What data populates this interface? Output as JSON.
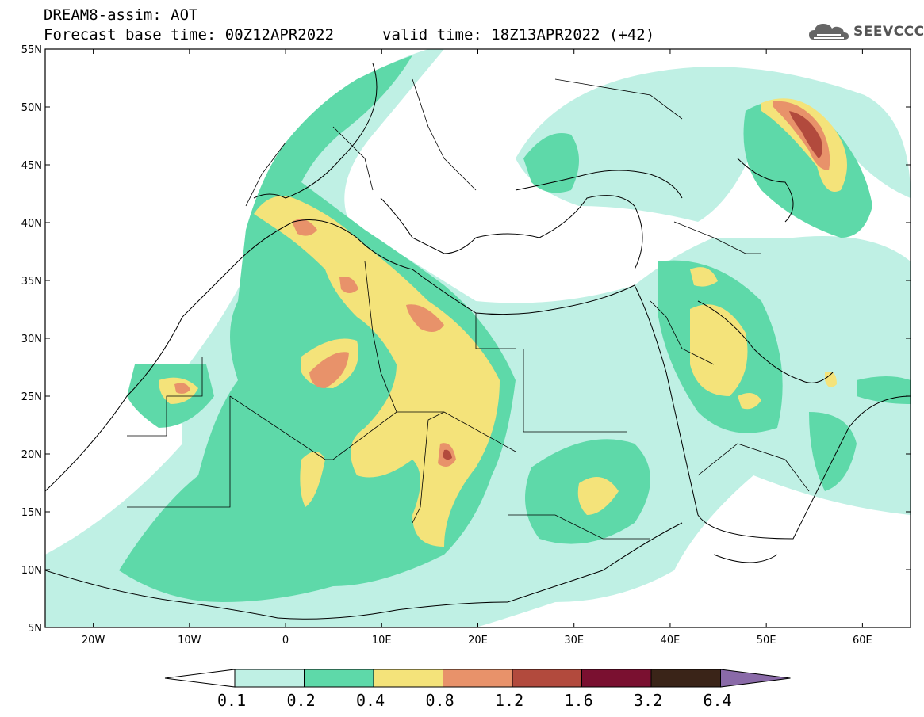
{
  "header": {
    "line1": "DREAM8-assim: AOT",
    "line2": "Forecast base time: 00Z12APR2022",
    "valid": "valid time: 18Z13APR2022 (+42)"
  },
  "logo": {
    "text": "SEEVCCC",
    "icon": "cloud-icon"
  },
  "map": {
    "variable": "AOT",
    "lon_range": [
      -25,
      65
    ],
    "lat_range": [
      5,
      55
    ],
    "lat_labels": [
      "55N",
      "50N",
      "45N",
      "40N",
      "35N",
      "30N",
      "25N",
      "20N",
      "15N",
      "10N",
      "5N"
    ],
    "lon_labels": [
      "20W",
      "10W",
      "0",
      "10E",
      "20E",
      "30E",
      "40E",
      "50E",
      "60E"
    ]
  },
  "colorbar": {
    "labels": [
      "0.1",
      "0.2",
      "0.4",
      "0.8",
      "1.2",
      "1.6",
      "3.2",
      "6.4"
    ],
    "colors": [
      "#ffffff",
      "#bff0e4",
      "#5ed9a9",
      "#f4e37a",
      "#e8926a",
      "#b24a3d",
      "#7a1030",
      "#3a2418",
      "#8a6aa8"
    ]
  }
}
